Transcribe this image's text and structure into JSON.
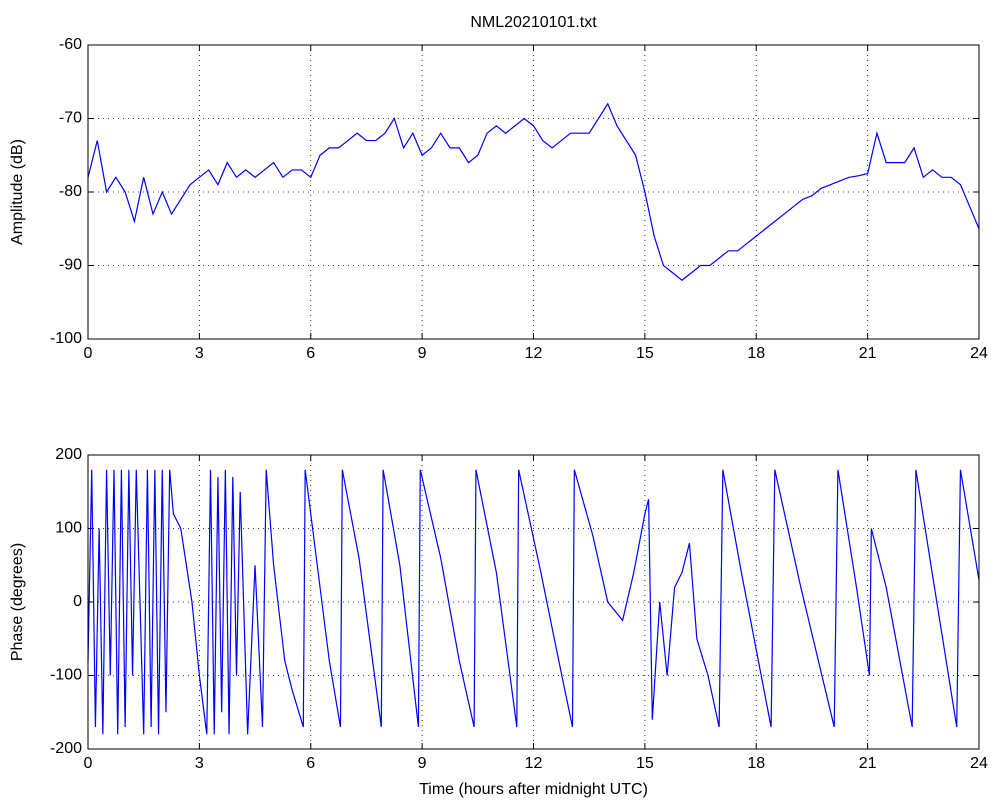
{
  "chart_data": [
    {
      "type": "line",
      "title": "NML20210101.txt",
      "y_label": "Amplitude (dB)",
      "color": "#0000ff",
      "grid": true,
      "xlim": [
        0,
        24
      ],
      "xticks": [
        0,
        3,
        6,
        9,
        12,
        15,
        18,
        21,
        24
      ],
      "ylim": [
        -100,
        -60
      ],
      "yticks": [
        -100,
        -90,
        -80,
        -70,
        -60
      ],
      "x": [
        0,
        0.25,
        0.5,
        0.75,
        1,
        1.25,
        1.5,
        1.75,
        2,
        2.25,
        2.5,
        2.75,
        3,
        3.25,
        3.5,
        3.75,
        4,
        4.25,
        4.5,
        4.75,
        5,
        5.25,
        5.5,
        5.75,
        6,
        6.25,
        6.5,
        6.75,
        7,
        7.25,
        7.5,
        7.75,
        8,
        8.25,
        8.5,
        8.75,
        9,
        9.25,
        9.5,
        9.75,
        10,
        10.25,
        10.5,
        10.75,
        11,
        11.25,
        11.5,
        11.75,
        12,
        12.25,
        12.5,
        12.75,
        13,
        13.25,
        13.5,
        13.75,
        14,
        14.25,
        14.5,
        14.75,
        15,
        15.25,
        15.5,
        15.75,
        16,
        16.25,
        16.5,
        16.75,
        17,
        17.25,
        17.5,
        17.75,
        18,
        18.25,
        18.5,
        18.75,
        19,
        19.25,
        19.5,
        19.75,
        20,
        20.25,
        20.5,
        20.75,
        21,
        21.25,
        21.5,
        21.75,
        22,
        22.25,
        22.5,
        22.75,
        23,
        23.25,
        23.5,
        23.75,
        24
      ],
      "values": [
        -78,
        -73,
        -80,
        -78,
        -80,
        -84,
        -78,
        -83,
        -80,
        -83,
        -81,
        -79,
        -78,
        -77,
        -79,
        -76,
        -78,
        -77,
        -78,
        -77,
        -76,
        -78,
        -77,
        -77,
        -78,
        -75,
        -74,
        -74,
        -73,
        -72,
        -73,
        -73,
        -72,
        -70,
        -74,
        -72,
        -75,
        -74,
        -72,
        -74,
        -74,
        -76,
        -75,
        -72,
        -71,
        -72,
        -71,
        -70,
        -71,
        -73,
        -74,
        -73,
        -72,
        -72,
        -72,
        -70,
        -68,
        -71,
        -73,
        -75,
        -80,
        -86,
        -90,
        -91,
        -92,
        -91,
        -90,
        -90,
        -89,
        -88,
        -88,
        -87,
        -86,
        -85,
        -84,
        -83,
        -82,
        -81,
        -80.5,
        -79.5,
        -79,
        -78.5,
        -78,
        -77.8,
        -77.5,
        -72,
        -76,
        -76,
        -76,
        -74,
        -78,
        -77,
        -78,
        -78,
        -79,
        -82,
        -85
      ]
    },
    {
      "type": "line",
      "x_label": "Time (hours after midnight UTC)",
      "y_label": "Phase (degrees)",
      "color": "#0000ff",
      "grid": true,
      "xlim": [
        0,
        24
      ],
      "xticks": [
        0,
        3,
        6,
        9,
        12,
        15,
        18,
        21,
        24
      ],
      "ylim": [
        -200,
        200
      ],
      "yticks": [
        -200,
        -100,
        0,
        100,
        200
      ],
      "x": [
        0,
        0.1,
        0.2,
        0.3,
        0.4,
        0.5,
        0.6,
        0.7,
        0.8,
        0.9,
        1.0,
        1.1,
        1.2,
        1.3,
        1.5,
        1.6,
        1.7,
        1.8,
        1.9,
        2.0,
        2.1,
        2.2,
        2.3,
        2.5,
        2.8,
        3.0,
        3.2,
        3.3,
        3.4,
        3.5,
        3.6,
        3.7,
        3.8,
        3.9,
        4.0,
        4.1,
        4.3,
        4.5,
        4.7,
        4.8,
        5.0,
        5.3,
        5.5,
        5.8,
        5.85,
        6.2,
        6.5,
        6.8,
        6.85,
        7.3,
        7.9,
        7.95,
        8.4,
        8.9,
        8.95,
        9.5,
        10.0,
        10.4,
        10.45,
        11.0,
        11.55,
        11.6,
        12.2,
        12.6,
        13.05,
        13.1,
        13.6,
        14.0,
        14.4,
        14.7,
        15.0,
        15.1,
        15.2,
        15.4,
        15.6,
        15.8,
        16.0,
        16.2,
        16.4,
        16.7,
        17.0,
        17.1,
        17.6,
        18.4,
        18.5,
        19.2,
        20.1,
        20.2,
        20.7,
        21.05,
        21.1,
        21.5,
        22.2,
        22.3,
        22.8,
        23.4,
        23.5,
        24.0
      ],
      "values": [
        -80,
        180,
        -170,
        100,
        -180,
        180,
        -100,
        180,
        -180,
        180,
        -170,
        180,
        -100,
        180,
        -180,
        180,
        -170,
        180,
        -180,
        180,
        -150,
        180,
        120,
        100,
        0,
        -100,
        -180,
        180,
        -180,
        170,
        -150,
        180,
        -180,
        170,
        -100,
        150,
        -180,
        50,
        -170,
        180,
        50,
        -80,
        -120,
        -170,
        180,
        40,
        -80,
        -170,
        180,
        60,
        -170,
        180,
        50,
        -170,
        180,
        60,
        -80,
        -170,
        180,
        40,
        -170,
        180,
        40,
        -60,
        -170,
        180,
        90,
        0,
        -25,
        40,
        120,
        140,
        -160,
        0,
        -100,
        20,
        40,
        80,
        -50,
        -100,
        -170,
        180,
        40,
        -170,
        180,
        20,
        -170,
        180,
        20,
        -100,
        100,
        20,
        -170,
        180,
        20,
        -170,
        180,
        30
      ]
    }
  ]
}
